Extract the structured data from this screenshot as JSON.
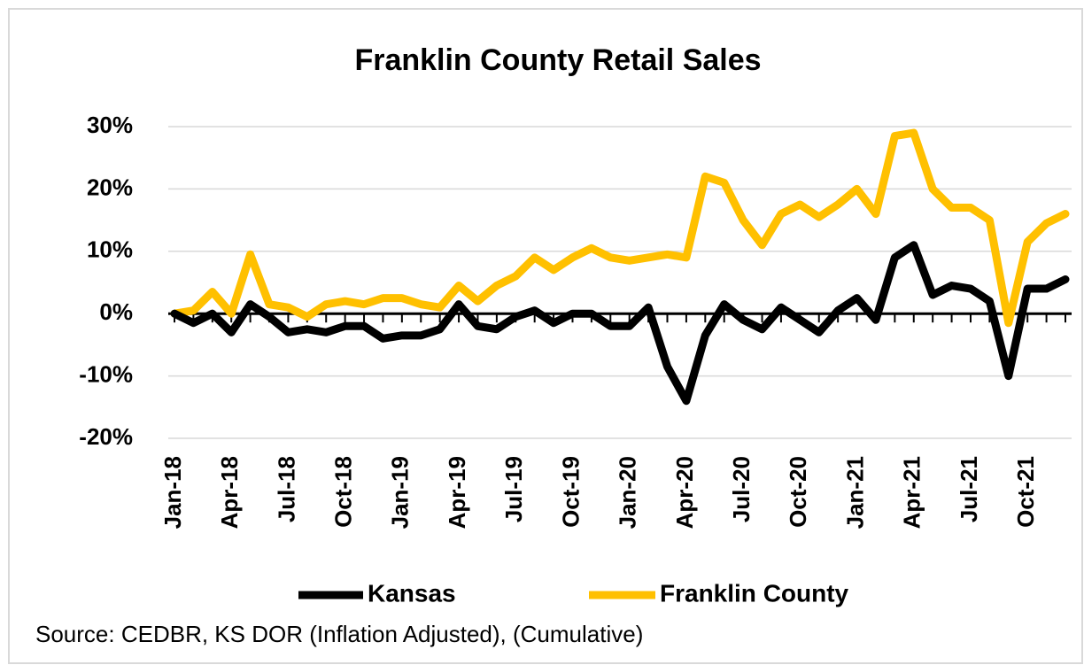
{
  "chart_data": {
    "type": "line",
    "title": "Franklin County Retail Sales",
    "source": "Source: CEDBR, KS DOR (Inflation Adjusted), (Cumulative)",
    "categories": [
      "Jan-18",
      null,
      null,
      "Apr-18",
      null,
      null,
      "Jul-18",
      null,
      null,
      "Oct-18",
      null,
      null,
      "Jan-19",
      null,
      null,
      "Apr-19",
      null,
      null,
      "Jul-19",
      null,
      null,
      "Oct-19",
      null,
      null,
      "Jan-20",
      null,
      null,
      "Apr-20",
      null,
      null,
      "Jul-20",
      null,
      null,
      "Oct-20",
      null,
      null,
      "Jan-21",
      null,
      null,
      "Apr-21",
      null,
      null,
      "Jul-21",
      null,
      null,
      "Oct-21",
      null,
      null
    ],
    "series": [
      {
        "name": "Kansas",
        "color": "#000000",
        "values": [
          0,
          -1.5,
          0,
          -3,
          1.5,
          -0.5,
          -3,
          -2.5,
          -3,
          -2,
          -2,
          -4,
          -3.5,
          -3.5,
          -2.5,
          1.5,
          -2,
          -2.5,
          -0.5,
          0.5,
          -1.5,
          0,
          0,
          -2,
          -2,
          1,
          -8.5,
          -14,
          -3.5,
          1.5,
          -1,
          -2.5,
          1,
          -1,
          -3,
          0.5,
          2.5,
          -1,
          9,
          11,
          3,
          4.5,
          4,
          2,
          -10,
          4,
          4,
          5.5
        ]
      },
      {
        "name": "Franklin County",
        "color": "#ffc000",
        "values": [
          0,
          0.5,
          3.5,
          0,
          9.5,
          1.5,
          1,
          -0.5,
          1.5,
          2,
          1.5,
          2.5,
          2.5,
          1.5,
          1,
          4.5,
          2,
          4.5,
          6,
          9,
          7,
          9,
          10.5,
          9,
          8.5,
          9,
          9.5,
          9,
          22,
          21,
          15,
          11,
          16,
          17.5,
          15.5,
          17.5,
          20,
          16,
          28.5,
          29,
          20,
          17,
          17,
          15,
          -1.5,
          11.5,
          14.5,
          16
        ]
      }
    ],
    "ylim": [
      -20,
      30
    ],
    "yticks": [
      {
        "value": -20,
        "label": "-20%"
      },
      {
        "value": -10,
        "label": "-10%"
      },
      {
        "value": 0,
        "label": "0%"
      },
      {
        "value": 10,
        "label": "10%"
      },
      {
        "value": 20,
        "label": "20%"
      },
      {
        "value": 30,
        "label": "30%"
      }
    ],
    "grid": true
  }
}
